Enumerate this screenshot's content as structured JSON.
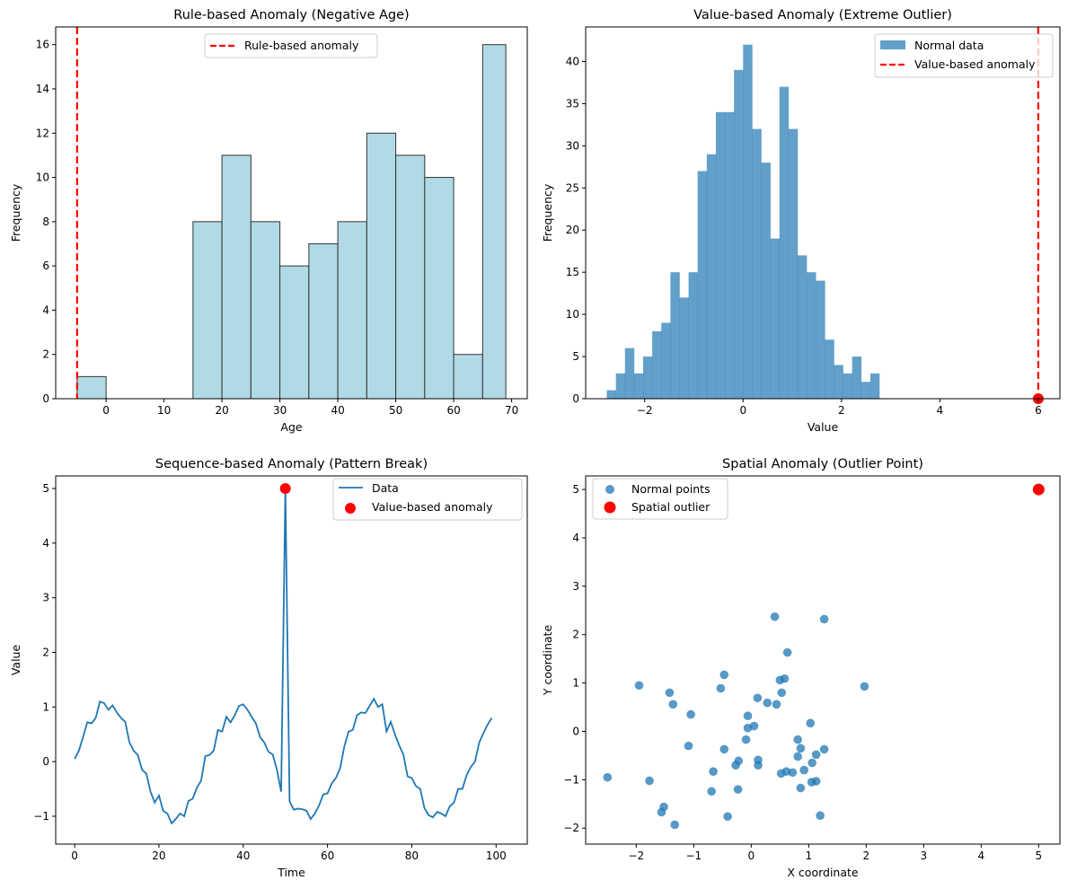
{
  "chart_data": [
    {
      "type": "bar",
      "title": "Rule-based Anomaly (Negative Age)",
      "xlabel": "Age",
      "ylabel": "Frequency",
      "bin_edges": [
        -5,
        0,
        5,
        10,
        15,
        20,
        25,
        30,
        35,
        40,
        45,
        50,
        55,
        60,
        65,
        69
      ],
      "values": [
        1,
        0,
        0,
        0,
        8,
        11,
        8,
        6,
        7,
        8,
        12,
        11,
        10,
        2,
        16
      ],
      "xlim": [
        -8.7,
        72.7
      ],
      "ylim": [
        0,
        16.8
      ],
      "xticks": [
        0,
        10,
        20,
        30,
        40,
        50,
        60,
        70
      ],
      "yticks": [
        0,
        2,
        4,
        6,
        8,
        10,
        12,
        14,
        16
      ],
      "bar_color": "#add8e6",
      "edge_color": "#333333",
      "vline": {
        "x": -5,
        "name": "Rule-based anomaly",
        "color": "#ff0000"
      },
      "legend": "upper-center"
    },
    {
      "type": "bar",
      "title": "Value-based Anomaly (Extreme Outlier)",
      "xlabel": "Value",
      "ylabel": "Frequency",
      "bin_start": -2.77,
      "bin_end": 2.77,
      "values": [
        1,
        3,
        6,
        3,
        5,
        8,
        9,
        15,
        12,
        15,
        27,
        29,
        34,
        34,
        39,
        42,
        32,
        28,
        19,
        37,
        32,
        17,
        15,
        14,
        7,
        4,
        3,
        5,
        2,
        3
      ],
      "series_name": "Normal data",
      "xlim": [
        -3.2,
        6.44
      ],
      "ylim": [
        0,
        44.1
      ],
      "xticks": [
        -2,
        0,
        2,
        4,
        6
      ],
      "yticks": [
        0,
        5,
        10,
        15,
        20,
        25,
        30,
        35,
        40
      ],
      "bar_color": "#1f77b4",
      "vline": {
        "x": 6,
        "name": "Value-based anomaly",
        "color": "#ff0000"
      },
      "marker": {
        "x": 6,
        "y": 0
      },
      "legend": "upper-right"
    },
    {
      "type": "line",
      "title": "Sequence-based Anomaly (Pattern Break)",
      "xlabel": "Time",
      "ylabel": "Value",
      "series": [
        {
          "name": "Data",
          "color": "#1f77b4",
          "values": [
            0.05,
            0.2,
            0.45,
            0.72,
            0.7,
            0.8,
            1.1,
            1.07,
            0.95,
            1.03,
            0.9,
            0.8,
            0.73,
            0.35,
            0.2,
            0.12,
            -0.15,
            -0.22,
            -0.55,
            -0.75,
            -0.62,
            -0.9,
            -0.95,
            -1.13,
            -1.05,
            -0.95,
            -1.0,
            -0.72,
            -0.68,
            -0.48,
            -0.35,
            0.1,
            0.12,
            0.2,
            0.58,
            0.55,
            0.82,
            0.72,
            0.85,
            1.02,
            1.05,
            0.95,
            0.82,
            0.7,
            0.45,
            0.35,
            0.18,
            0.13,
            -0.15,
            -0.55,
            5.0,
            -0.73,
            -0.88,
            -0.86,
            -0.87,
            -0.9,
            -1.05,
            -0.95,
            -0.8,
            -0.6,
            -0.58,
            -0.4,
            -0.3,
            -0.12,
            0.28,
            0.55,
            0.58,
            0.85,
            0.9,
            0.89,
            1.02,
            1.15,
            1.0,
            1.05,
            0.55,
            0.73,
            0.5,
            0.3,
            0.13,
            -0.27,
            -0.3,
            -0.45,
            -0.5,
            -0.85,
            -0.98,
            -1.02,
            -0.92,
            -0.95,
            -1.0,
            -0.82,
            -0.75,
            -0.5,
            -0.5,
            -0.25,
            -0.1,
            0.0,
            0.35,
            0.52,
            0.68,
            0.8
          ]
        },
        {
          "name": "Value-based anomaly",
          "color": "#ff0000",
          "type": "scatter",
          "points": [
            [
              50,
              5.0
            ]
          ]
        }
      ],
      "xlim": [
        -4.5,
        107.4
      ],
      "ylim": [
        -1.51,
        5.23
      ],
      "xticks": [
        0,
        20,
        40,
        60,
        80,
        100
      ],
      "yticks": [
        -1,
        0,
        1,
        2,
        3,
        4,
        5
      ],
      "legend": "upper-right"
    },
    {
      "type": "scatter",
      "title": "Spatial Anomaly (Outlier Point)",
      "xlabel": "X coordinate",
      "ylabel": "Y coordinate",
      "series": [
        {
          "name": "Normal points",
          "color": "#1f77b4",
          "points": [
            [
              0.41,
              2.37
            ],
            [
              1.27,
              2.32
            ],
            [
              0.63,
              1.63
            ],
            [
              -0.47,
              1.17
            ],
            [
              0.5,
              1.06
            ],
            [
              0.58,
              1.09
            ],
            [
              -1.95,
              0.95
            ],
            [
              -0.53,
              0.89
            ],
            [
              1.97,
              0.93
            ],
            [
              -1.42,
              0.8
            ],
            [
              0.53,
              0.8
            ],
            [
              -1.36,
              0.56
            ],
            [
              0.11,
              0.69
            ],
            [
              0.28,
              0.59
            ],
            [
              0.44,
              0.56
            ],
            [
              -1.05,
              0.35
            ],
            [
              -0.06,
              0.32
            ],
            [
              -0.06,
              0.07
            ],
            [
              0.05,
              0.11
            ],
            [
              1.03,
              0.17
            ],
            [
              -0.09,
              -0.17
            ],
            [
              -1.09,
              -0.3
            ],
            [
              -0.47,
              -0.37
            ],
            [
              0.81,
              -0.17
            ],
            [
              0.86,
              -0.35
            ],
            [
              1.27,
              -0.37
            ],
            [
              1.13,
              -0.48
            ],
            [
              0.81,
              -0.52
            ],
            [
              -0.22,
              -0.61
            ],
            [
              -0.27,
              -0.7
            ],
            [
              0.12,
              -0.59
            ],
            [
              0.12,
              -0.7
            ],
            [
              1.06,
              -0.65
            ],
            [
              -0.66,
              -0.83
            ],
            [
              0.61,
              -0.83
            ],
            [
              0.52,
              -0.87
            ],
            [
              0.72,
              -0.85
            ],
            [
              0.92,
              -0.8
            ],
            [
              -1.77,
              -1.02
            ],
            [
              1.05,
              -1.05
            ],
            [
              1.13,
              -1.03
            ],
            [
              0.86,
              -1.17
            ],
            [
              -0.23,
              -1.2
            ],
            [
              -0.69,
              -1.24
            ],
            [
              -2.5,
              -0.95
            ],
            [
              -1.52,
              -1.56
            ],
            [
              -1.56,
              -1.67
            ],
            [
              -1.33,
              -1.93
            ],
            [
              -0.41,
              -1.76
            ],
            [
              1.2,
              -1.74
            ]
          ]
        },
        {
          "name": "Spatial outlier",
          "color": "#ff0000",
          "points": [
            [
              5,
              5
            ]
          ]
        }
      ],
      "xlim": [
        -2.88,
        5.37
      ],
      "ylim": [
        -2.33,
        5.28
      ],
      "xticks": [
        -2,
        -1,
        0,
        1,
        2,
        3,
        4,
        5
      ],
      "yticks": [
        -2,
        -1,
        0,
        1,
        2,
        3,
        4,
        5
      ],
      "legend": "upper-left"
    }
  ]
}
